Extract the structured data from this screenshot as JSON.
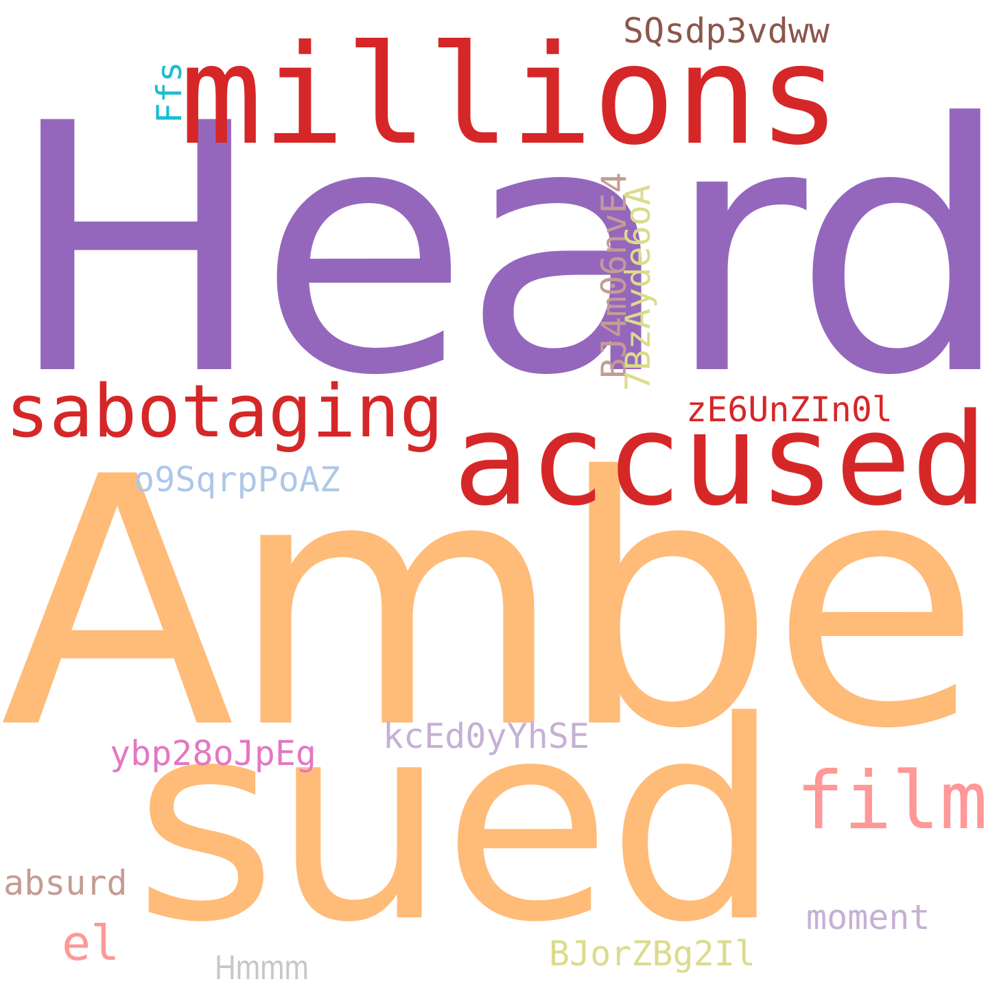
{
  "words": {
    "heard": {
      "text": "Heard",
      "color": "#9467bd"
    },
    "millions": {
      "text": "millions",
      "color": "#d62728"
    },
    "amber": {
      "text": "Amber",
      "color": "#ffbb78"
    },
    "sued": {
      "text": "sued",
      "color": "#ffbb78"
    },
    "accused": {
      "text": "accused",
      "color": "#d62728"
    },
    "sabotaging": {
      "text": "sabotaging",
      "color": "#d62728"
    },
    "film": {
      "text": "film",
      "color": "#ff9896"
    },
    "sqsdp": {
      "text": "SQsdp3vdww",
      "color": "#8c564b"
    },
    "ze6": {
      "text": "zE6UnZIn0l",
      "color": "#d62728"
    },
    "o9s": {
      "text": "o9SqrpPoAZ",
      "color": "#aec7e8"
    },
    "kced": {
      "text": "kcEd0yYhSE",
      "color": "#c5b0d5"
    },
    "ybp": {
      "text": "ybp28oJpEg",
      "color": "#e377c2"
    },
    "absurd": {
      "text": "absurd",
      "color": "#c49c94"
    },
    "el": {
      "text": "el",
      "color": "#ff9896"
    },
    "moment": {
      "text": "moment",
      "color": "#c5b0d5"
    },
    "bjorz": {
      "text": "BJorZBg2Il",
      "color": "#dbdb8d"
    },
    "hmmm": {
      "text": "Hmmm",
      "color": "#c7c7c7"
    },
    "ffs": {
      "text": "Ffs",
      "color": "#17becf"
    },
    "bj4m": {
      "text": "BJ4m06nvE4",
      "color": "#c49c94"
    },
    "7bz": {
      "text": "7BzAyde6oA",
      "color": "#dbdb8d"
    }
  }
}
